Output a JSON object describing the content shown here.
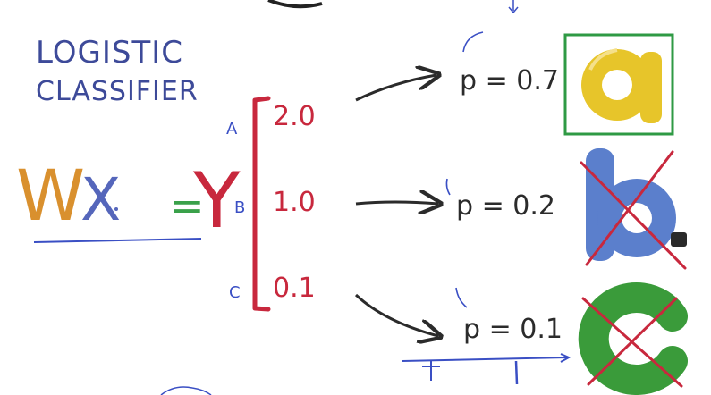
{
  "title": {
    "line1": "LOGISTIC",
    "line2": "CLASSIFIER",
    "color": "#3d4a99"
  },
  "equation": {
    "w": "W",
    "x": "X",
    "equals": "=",
    "y": "Y",
    "w_color": "#d9902e",
    "x_color": "#5566bb",
    "equals_color": "#3aa14a",
    "y_color": "#c8283d"
  },
  "logits": {
    "bracket_color": "#c8283d",
    "rows": [
      {
        "class_label": "A",
        "score": "2.0",
        "probability": "p = 0.7",
        "letter": "a",
        "letter_color": "#e7c52a",
        "crossed": false
      },
      {
        "class_label": "B",
        "score": "1.0",
        "probability": "p = 0.2",
        "letter": "b",
        "letter_color": "#5b7fcc",
        "crossed": true
      },
      {
        "class_label": "C",
        "score": "0.1",
        "probability": "p = 0.1",
        "letter": "c",
        "letter_color": "#3a9b3a",
        "crossed": true
      }
    ]
  },
  "colors": {
    "ink": "#2b2b2b",
    "blue_ink": "#3a4fc4",
    "red_ink": "#c8283d",
    "green_box": "#2f9a44"
  }
}
